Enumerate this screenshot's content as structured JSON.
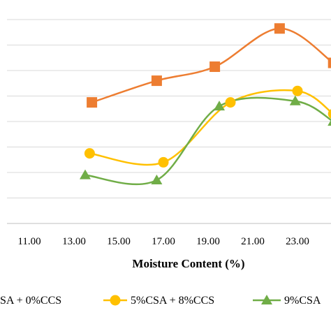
{
  "chart_data": {
    "type": "line",
    "xlabel": "Moisture Content (%)",
    "ylabel": "",
    "title": "",
    "xlim": [
      10,
      24.5
    ],
    "ylim": [
      0,
      8
    ],
    "x_ticks": [
      "11.00",
      "13.00",
      "15.00",
      "17.00",
      "19.00",
      "21.00",
      "23.00"
    ],
    "grid": "horizontal",
    "legend_position": "bottom",
    "series": [
      {
        "name": "SA + 0%CCS",
        "color": "#ED7D31",
        "marker": "square",
        "points": [
          [
            13.8,
            4.75
          ],
          [
            16.7,
            5.6
          ],
          [
            19.3,
            6.15
          ],
          [
            22.2,
            7.65
          ],
          [
            24.6,
            6.3
          ]
        ]
      },
      {
        "name": "5%CSA + 8%CCS",
        "color": "#FFC000",
        "marker": "circle",
        "points": [
          [
            13.7,
            2.75
          ],
          [
            17.0,
            2.4
          ],
          [
            20.0,
            4.75
          ],
          [
            23.0,
            5.2
          ],
          [
            24.6,
            4.3
          ]
        ]
      },
      {
        "name": "9%CSA",
        "color": "#70AD47",
        "marker": "triangle",
        "points": [
          [
            13.5,
            1.9
          ],
          [
            16.7,
            1.7
          ],
          [
            19.5,
            4.6
          ],
          [
            22.9,
            4.8
          ],
          [
            24.6,
            4.0
          ]
        ]
      }
    ]
  }
}
